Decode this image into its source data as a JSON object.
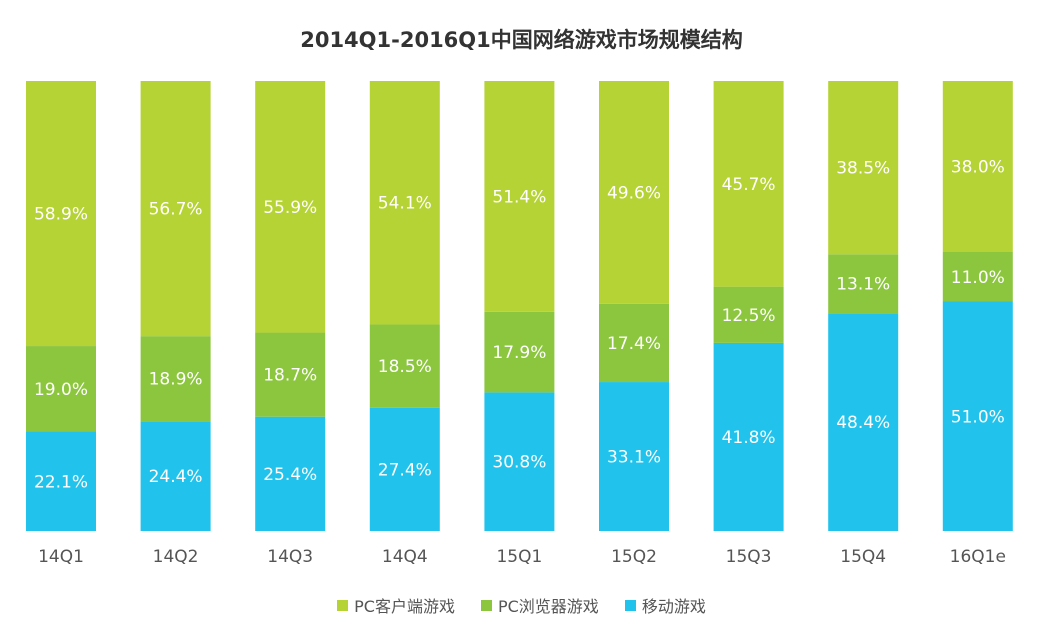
{
  "chart_data": {
    "type": "bar",
    "stacked": true,
    "title": "2014Q1-2016Q1中国网络游戏市场规模结构",
    "categories": [
      "14Q1",
      "14Q2",
      "14Q3",
      "14Q4",
      "15Q1",
      "15Q2",
      "15Q3",
      "15Q4",
      "16Q1e"
    ],
    "series": [
      {
        "name": "移动游戏",
        "color": "#21c3ec",
        "values": [
          22.1,
          24.4,
          25.4,
          27.4,
          30.8,
          33.1,
          41.8,
          48.4,
          51.0
        ],
        "labels": [
          "22.1%",
          "24.4%",
          "25.4%",
          "27.4%",
          "30.8%",
          "33.1%",
          "41.8%",
          "48.4%",
          "51.0%"
        ]
      },
      {
        "name": "PC浏览器游戏",
        "color": "#8cc63f",
        "values": [
          19.0,
          18.9,
          18.7,
          18.5,
          17.9,
          17.4,
          12.5,
          13.1,
          11.0
        ],
        "labels": [
          "19.0%",
          "18.9%",
          "18.7%",
          "18.5%",
          "17.9%",
          "17.4%",
          "12.5%",
          "13.1%",
          "11.0%"
        ]
      },
      {
        "name": "PC客户端游戏",
        "color": "#b5d334",
        "values": [
          58.9,
          56.7,
          55.9,
          54.1,
          51.4,
          49.6,
          45.7,
          38.5,
          38.0
        ],
        "labels": [
          "58.9%",
          "56.7%",
          "55.9%",
          "54.1%",
          "51.4%",
          "49.6%",
          "45.7%",
          "38.5%",
          "38.0%"
        ]
      }
    ],
    "legend": {
      "placement": "bottom",
      "order": [
        "PC客户端游戏",
        "PC浏览器游戏",
        "移动游戏"
      ]
    },
    "ylim": [
      0,
      100
    ],
    "grid": false
  }
}
